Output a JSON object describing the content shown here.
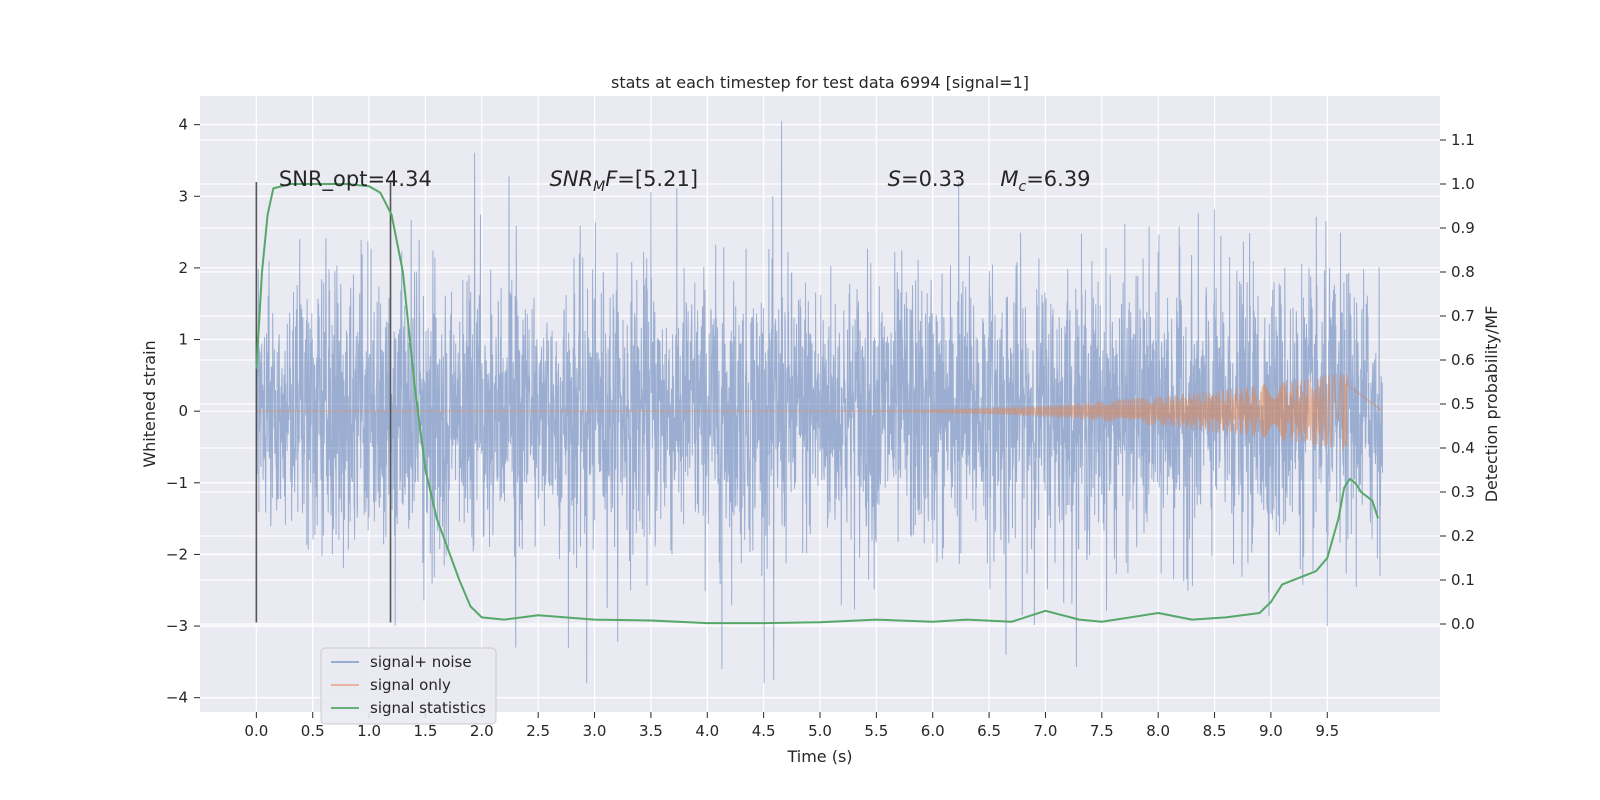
{
  "chart_data": {
    "type": "line",
    "title": "stats at each timestep for test data 6994 [signal=1]",
    "xlabel": "Time (s)",
    "ylabel_left": "Whitened strain",
    "ylabel_right": "Detection probability/MF",
    "xlim": [
      -0.5,
      10.5
    ],
    "ylim_left": [
      -4.2,
      4.4
    ],
    "ylim_right": [
      -0.2,
      1.2
    ],
    "grid": true,
    "legend_position": "lower-left",
    "x_ticks": [
      {
        "value": 0.0,
        "label": "0.0"
      },
      {
        "value": 0.5,
        "label": "0.5"
      },
      {
        "value": 1.0,
        "label": "1.0"
      },
      {
        "value": 1.5,
        "label": "1.5"
      },
      {
        "value": 2.0,
        "label": "2.0"
      },
      {
        "value": 2.5,
        "label": "2.5"
      },
      {
        "value": 3.0,
        "label": "3.0"
      },
      {
        "value": 3.5,
        "label": "3.5"
      },
      {
        "value": 4.0,
        "label": "4.0"
      },
      {
        "value": 4.5,
        "label": "4.5"
      },
      {
        "value": 5.0,
        "label": "5.0"
      },
      {
        "value": 5.5,
        "label": "5.5"
      },
      {
        "value": 6.0,
        "label": "6.0"
      },
      {
        "value": 6.5,
        "label": "6.5"
      },
      {
        "value": 7.0,
        "label": "7.0"
      },
      {
        "value": 7.5,
        "label": "7.5"
      },
      {
        "value": 8.0,
        "label": "8.0"
      },
      {
        "value": 8.5,
        "label": "8.5"
      },
      {
        "value": 9.0,
        "label": "9.0"
      },
      {
        "value": 9.5,
        "label": "9.5"
      }
    ],
    "y_ticks_left": [
      {
        "value": 4,
        "label": "4"
      },
      {
        "value": 3,
        "label": "3"
      },
      {
        "value": 2,
        "label": "2"
      },
      {
        "value": 1,
        "label": "1"
      },
      {
        "value": 0,
        "label": "0"
      },
      {
        "value": -1,
        "label": "−1"
      },
      {
        "value": -2,
        "label": "−2"
      },
      {
        "value": -3,
        "label": "−3"
      },
      {
        "value": -4,
        "label": "−4"
      }
    ],
    "y_ticks_right": [
      {
        "value": 1.1,
        "label": "1.1"
      },
      {
        "value": 1.0,
        "label": "1.0"
      },
      {
        "value": 0.9,
        "label": "0.9"
      },
      {
        "value": 0.8,
        "label": "0.8"
      },
      {
        "value": 0.7,
        "label": "0.7"
      },
      {
        "value": 0.6,
        "label": "0.6"
      },
      {
        "value": 0.5,
        "label": "0.5"
      },
      {
        "value": 0.4,
        "label": "0.4"
      },
      {
        "value": 0.3,
        "label": "0.3"
      },
      {
        "value": 0.2,
        "label": "0.2"
      },
      {
        "value": 0.1,
        "label": "0.1"
      },
      {
        "value": 0.0,
        "label": "0.0"
      }
    ],
    "annotations": [
      {
        "x": 0.2,
        "y": 3.2,
        "text": "SNR_opt=4.34",
        "math": false
      },
      {
        "x": 2.6,
        "y": 3.2,
        "base": "SNR",
        "sub": "M",
        "rest": "F=[5.21]",
        "math": true
      },
      {
        "x": 5.6,
        "y": 3.2,
        "base": "S",
        "sub": "",
        "rest": "=0.33",
        "math": true
      },
      {
        "x": 6.6,
        "y": 3.2,
        "base": "M",
        "sub": "c",
        "rest": "=6.39",
        "math": true
      }
    ],
    "vlines": [
      {
        "x": 0.0,
        "ymin": -2.95,
        "ymax": 3.2
      },
      {
        "x": 1.19,
        "ymin": -2.95,
        "ymax": 3.2
      }
    ],
    "series": [
      {
        "name": "signal+ noise",
        "axis": "left",
        "color": "#4c72b0",
        "description_range": {
          "x_start": 0.0,
          "x_end": 9.99
        },
        "envelope": {
          "max": 4.05,
          "min": -3.8
        },
        "notable_spikes": [
          {
            "x": 4.66,
            "y": 4.05
          },
          {
            "x": 4.13,
            "y": 3.55
          },
          {
            "x": 2.24,
            "y": 3.28
          },
          {
            "x": 3.5,
            "y": 3.06
          },
          {
            "x": 6.23,
            "y": 3.2
          },
          {
            "x": 2.93,
            "y": -3.8
          },
          {
            "x": 4.59,
            "y": -3.75
          },
          {
            "x": 4.13,
            "y": -3.6
          },
          {
            "x": 6.65,
            "y": -3.4
          },
          {
            "x": 2.3,
            "y": -3.3
          },
          {
            "x": 9.5,
            "y": -3.0
          }
        ]
      },
      {
        "name": "signal only",
        "axis": "left",
        "color": "#dd8452",
        "description": "chirp",
        "chirp": {
          "start": 5.0,
          "end": 9.68,
          "amp_start": 0.0,
          "amp_end": 0.55
        }
      },
      {
        "name": "signal statistics",
        "axis": "right",
        "color": "#55a868",
        "x": [
          0.0,
          0.05,
          0.1,
          0.15,
          0.3,
          0.5,
          0.8,
          1.0,
          1.1,
          1.2,
          1.3,
          1.4,
          1.5,
          1.6,
          1.8,
          1.9,
          2.0,
          2.2,
          2.5,
          3.0,
          3.5,
          4.0,
          4.5,
          5.0,
          5.5,
          6.0,
          6.3,
          6.7,
          7.0,
          7.3,
          7.5,
          8.0,
          8.3,
          8.6,
          8.9,
          9.0,
          9.1,
          9.25,
          9.4,
          9.5,
          9.6,
          9.65,
          9.7,
          9.75,
          9.8,
          9.9,
          9.95
        ],
        "y": [
          0.58,
          0.8,
          0.93,
          0.99,
          1.0,
          1.0,
          1.0,
          0.995,
          0.98,
          0.93,
          0.8,
          0.55,
          0.35,
          0.24,
          0.1,
          0.04,
          0.015,
          0.01,
          0.02,
          0.01,
          0.008,
          0.002,
          0.002,
          0.004,
          0.01,
          0.005,
          0.01,
          0.005,
          0.03,
          0.01,
          0.005,
          0.025,
          0.01,
          0.015,
          0.025,
          0.05,
          0.09,
          0.105,
          0.12,
          0.15,
          0.24,
          0.31,
          0.33,
          0.32,
          0.3,
          0.28,
          0.24
        ]
      }
    ]
  }
}
